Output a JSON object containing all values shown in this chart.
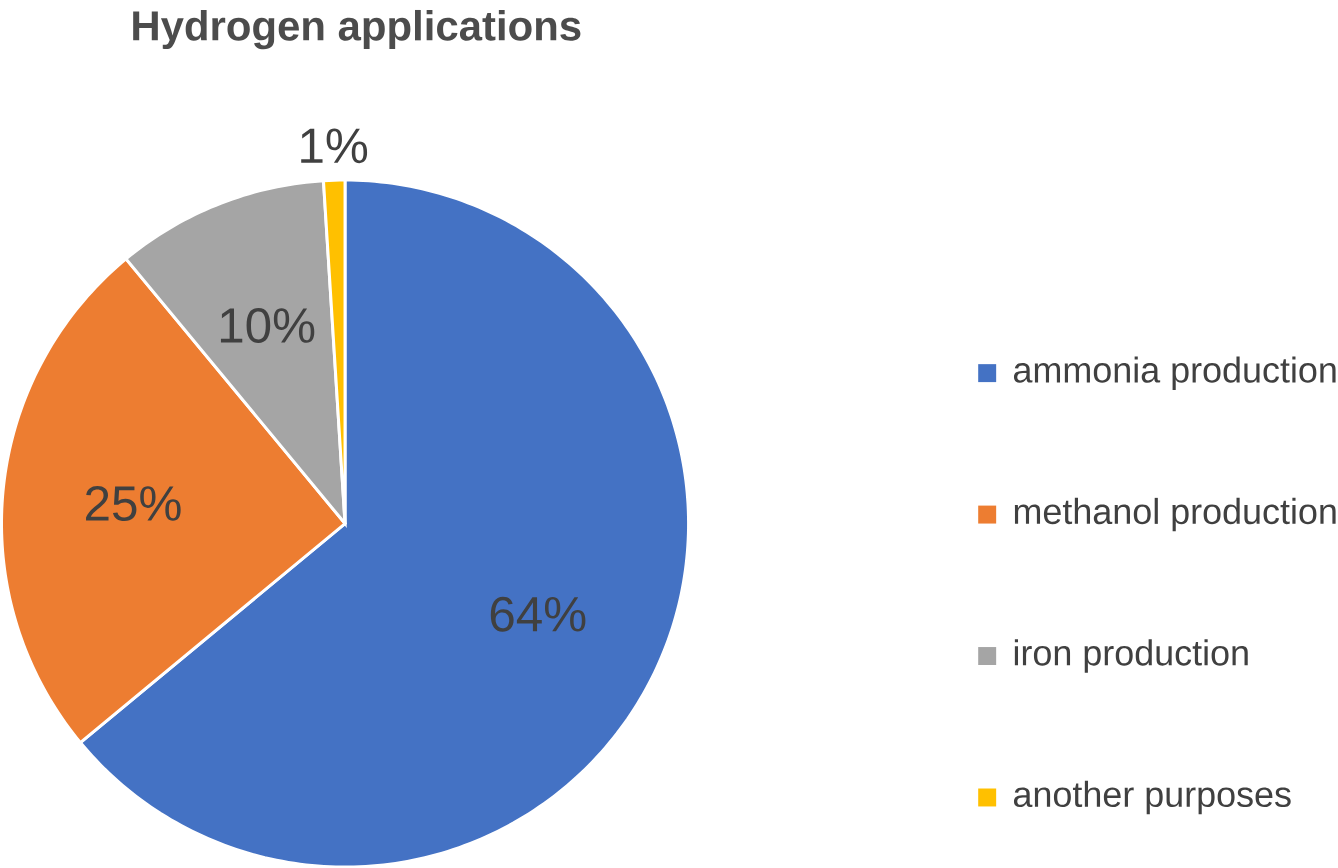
{
  "chart_data": {
    "type": "pie",
    "title": "Hydrogen applications",
    "categories": [
      "ammonia production",
      "methanol production",
      "iron production",
      "another purposes"
    ],
    "values": [
      64,
      25,
      10,
      1
    ],
    "colors": [
      "#4472c4",
      "#ed7d31",
      "#a5a5a5",
      "#ffc000"
    ],
    "value_labels": [
      "64%",
      "25%",
      "10%",
      "1%"
    ],
    "legend": "right"
  }
}
